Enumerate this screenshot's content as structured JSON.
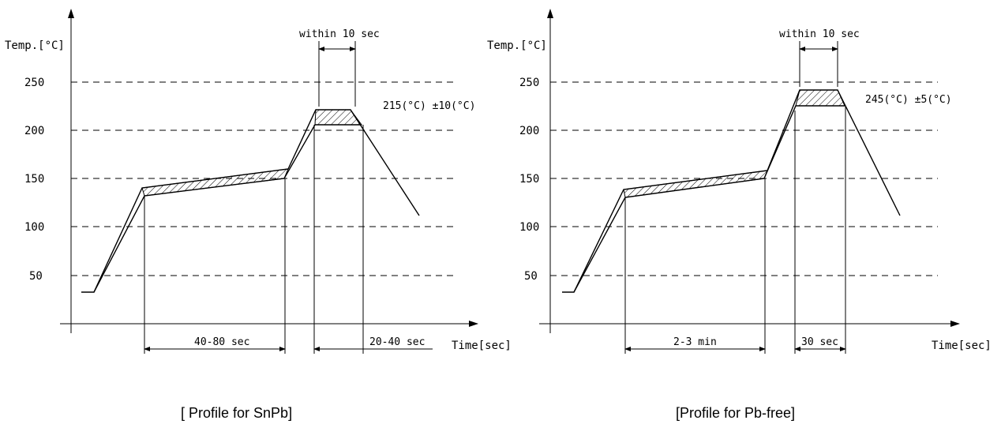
{
  "charts": [
    {
      "y_axis_label": "Temp.[°C]",
      "x_axis_label": "Time[sec]",
      "y_ticks": [
        "250",
        "200",
        "150",
        "100",
        "50"
      ],
      "peak_window_label": "within 10 sec",
      "peak_temp_label": "215(°C) ±10(°C)",
      "soak_duration_label": "40-80 sec",
      "reflow_duration_label": "20-40 sec",
      "caption": "[ Profile for SnPb]"
    },
    {
      "y_axis_label": "Temp.[°C]",
      "x_axis_label": "Time[sec]",
      "y_ticks": [
        "250",
        "200",
        "150",
        "100",
        "50"
      ],
      "peak_window_label": "within 10 sec",
      "peak_temp_label": "245(°C) ±5(°C)",
      "soak_duration_label": "2-3 min",
      "reflow_duration_label": "30 sec",
      "caption": "[Profile for Pb-free]"
    }
  ]
}
